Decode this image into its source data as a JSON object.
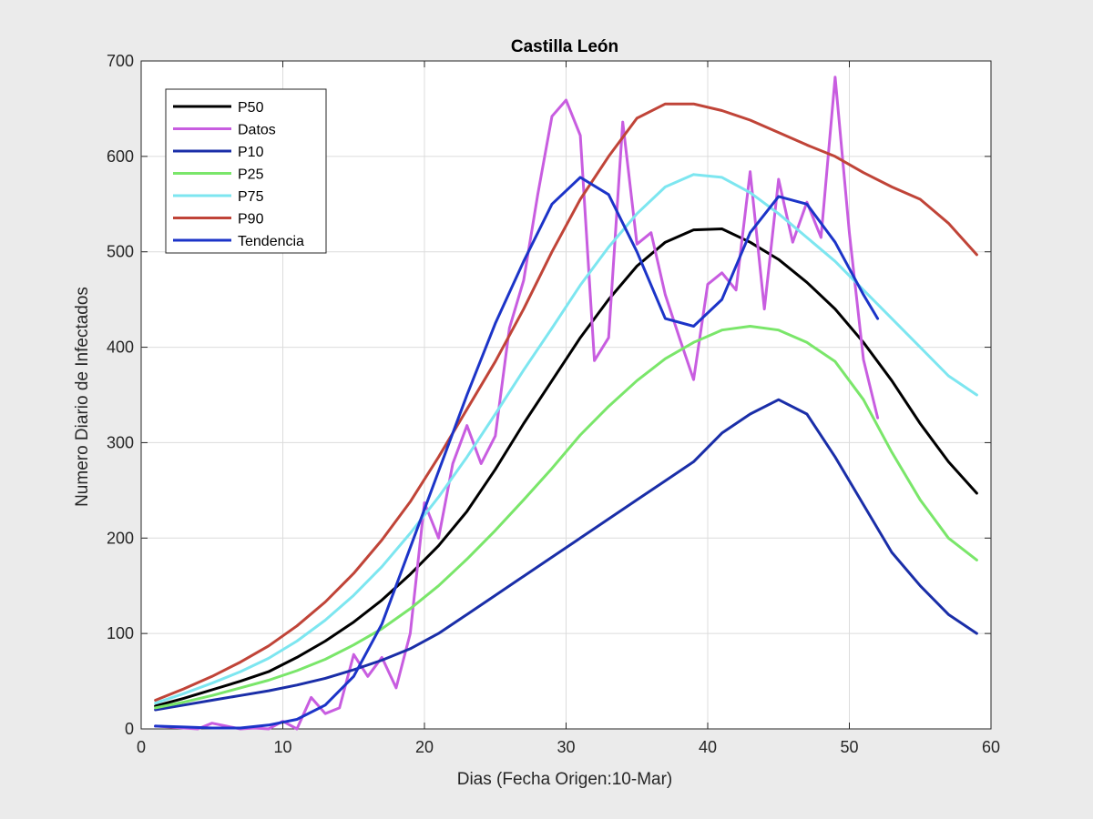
{
  "chart_data": {
    "type": "line",
    "title": "Castilla León",
    "xlabel": "Dias (Fecha Origen:10-Mar)",
    "ylabel": "Numero Diario de Infectados",
    "xlim": [
      0,
      60
    ],
    "ylim": [
      0,
      700
    ],
    "xticks": [
      0,
      10,
      20,
      30,
      40,
      50,
      60
    ],
    "yticks": [
      0,
      100,
      200,
      300,
      400,
      500,
      600,
      700
    ],
    "grid": true,
    "legend_position": "top-left",
    "series": [
      {
        "name": "P50",
        "color": "#000000",
        "x": [
          1,
          3,
          5,
          7,
          9,
          11,
          13,
          15,
          17,
          19,
          21,
          23,
          25,
          27,
          29,
          31,
          33,
          35,
          37,
          39,
          41,
          43,
          45,
          47,
          49,
          51,
          53,
          55,
          57,
          59
        ],
        "y": [
          24,
          32,
          41,
          50,
          60,
          75,
          92,
          112,
          135,
          162,
          192,
          228,
          272,
          320,
          365,
          410,
          450,
          485,
          510,
          523,
          524,
          510,
          492,
          468,
          440,
          405,
          365,
          320,
          280,
          247
        ]
      },
      {
        "name": "Datos",
        "color": "#c85de0",
        "x": [
          1,
          2,
          3,
          4,
          5,
          6,
          7,
          8,
          9,
          10,
          11,
          12,
          13,
          14,
          15,
          16,
          17,
          18,
          19,
          20,
          21,
          22,
          23,
          24,
          25,
          26,
          27,
          28,
          29,
          30,
          31,
          32,
          33,
          34,
          35,
          36,
          37,
          38,
          39,
          40,
          41,
          42,
          43,
          44,
          45,
          46,
          47,
          48,
          49,
          50,
          51,
          52
        ],
        "y": [
          3,
          2,
          1,
          0,
          6,
          3,
          0,
          1,
          0,
          8,
          0,
          33,
          16,
          22,
          78,
          55,
          75,
          43,
          100,
          237,
          200,
          278,
          318,
          278,
          307,
          420,
          470,
          560,
          642,
          659,
          622,
          386,
          410,
          636,
          508,
          520,
          455,
          410,
          366,
          466,
          478,
          460,
          584,
          440,
          576,
          510,
          552,
          515,
          683,
          520,
          387,
          326
        ]
      },
      {
        "name": "P10",
        "color": "#1a2ea8",
        "x": [
          1,
          3,
          5,
          7,
          9,
          11,
          13,
          15,
          17,
          19,
          21,
          23,
          25,
          27,
          29,
          31,
          33,
          35,
          37,
          39,
          41,
          43,
          45,
          47,
          49,
          51,
          53,
          55,
          57,
          59
        ],
        "y": [
          20,
          25,
          30,
          35,
          40,
          46,
          53,
          62,
          72,
          84,
          100,
          120,
          140,
          160,
          180,
          200,
          220,
          240,
          260,
          280,
          310,
          330,
          345,
          330,
          285,
          235,
          185,
          150,
          120,
          100
        ]
      },
      {
        "name": "P25",
        "color": "#7ae66a",
        "x": [
          1,
          3,
          5,
          7,
          9,
          11,
          13,
          15,
          17,
          19,
          21,
          23,
          25,
          27,
          29,
          31,
          33,
          35,
          37,
          39,
          41,
          43,
          45,
          47,
          49,
          51,
          53,
          55,
          57,
          59
        ],
        "y": [
          22,
          28,
          35,
          43,
          51,
          61,
          73,
          88,
          105,
          126,
          150,
          178,
          208,
          240,
          273,
          308,
          338,
          365,
          388,
          405,
          418,
          422,
          418,
          405,
          385,
          345,
          290,
          240,
          200,
          177
        ]
      },
      {
        "name": "P75",
        "color": "#7de6f0",
        "x": [
          1,
          3,
          5,
          7,
          9,
          11,
          13,
          15,
          17,
          19,
          21,
          23,
          25,
          27,
          29,
          31,
          33,
          35,
          37,
          39,
          41,
          43,
          45,
          47,
          49,
          51,
          53,
          55,
          57,
          59
        ],
        "y": [
          27,
          37,
          48,
          60,
          74,
          92,
          114,
          140,
          170,
          205,
          243,
          285,
          330,
          376,
          420,
          465,
          505,
          540,
          568,
          581,
          578,
          562,
          540,
          515,
          490,
          460,
          430,
          400,
          370,
          350
        ]
      },
      {
        "name": "P90",
        "color": "#c04438",
        "x": [
          1,
          3,
          5,
          7,
          9,
          11,
          13,
          15,
          17,
          19,
          21,
          23,
          25,
          27,
          29,
          31,
          33,
          35,
          37,
          39,
          41,
          43,
          45,
          47,
          49,
          51,
          53,
          55,
          57,
          59
        ],
        "y": [
          30,
          42,
          55,
          70,
          87,
          108,
          133,
          163,
          198,
          238,
          285,
          335,
          385,
          440,
          500,
          555,
          600,
          640,
          655,
          655,
          648,
          638,
          625,
          612,
          600,
          583,
          568,
          555,
          530,
          497
        ]
      },
      {
        "name": "Tendencia",
        "color": "#1c34c8",
        "x": [
          1,
          3,
          5,
          7,
          9,
          11,
          13,
          15,
          17,
          19,
          21,
          23,
          25,
          27,
          29,
          31,
          33,
          35,
          37,
          39,
          41,
          43,
          45,
          47,
          49,
          51,
          52
        ],
        "y": [
          3,
          2,
          1,
          1,
          4,
          10,
          25,
          55,
          110,
          190,
          270,
          350,
          425,
          490,
          550,
          578,
          560,
          500,
          430,
          422,
          450,
          520,
          558,
          550,
          510,
          455,
          430
        ]
      }
    ]
  }
}
